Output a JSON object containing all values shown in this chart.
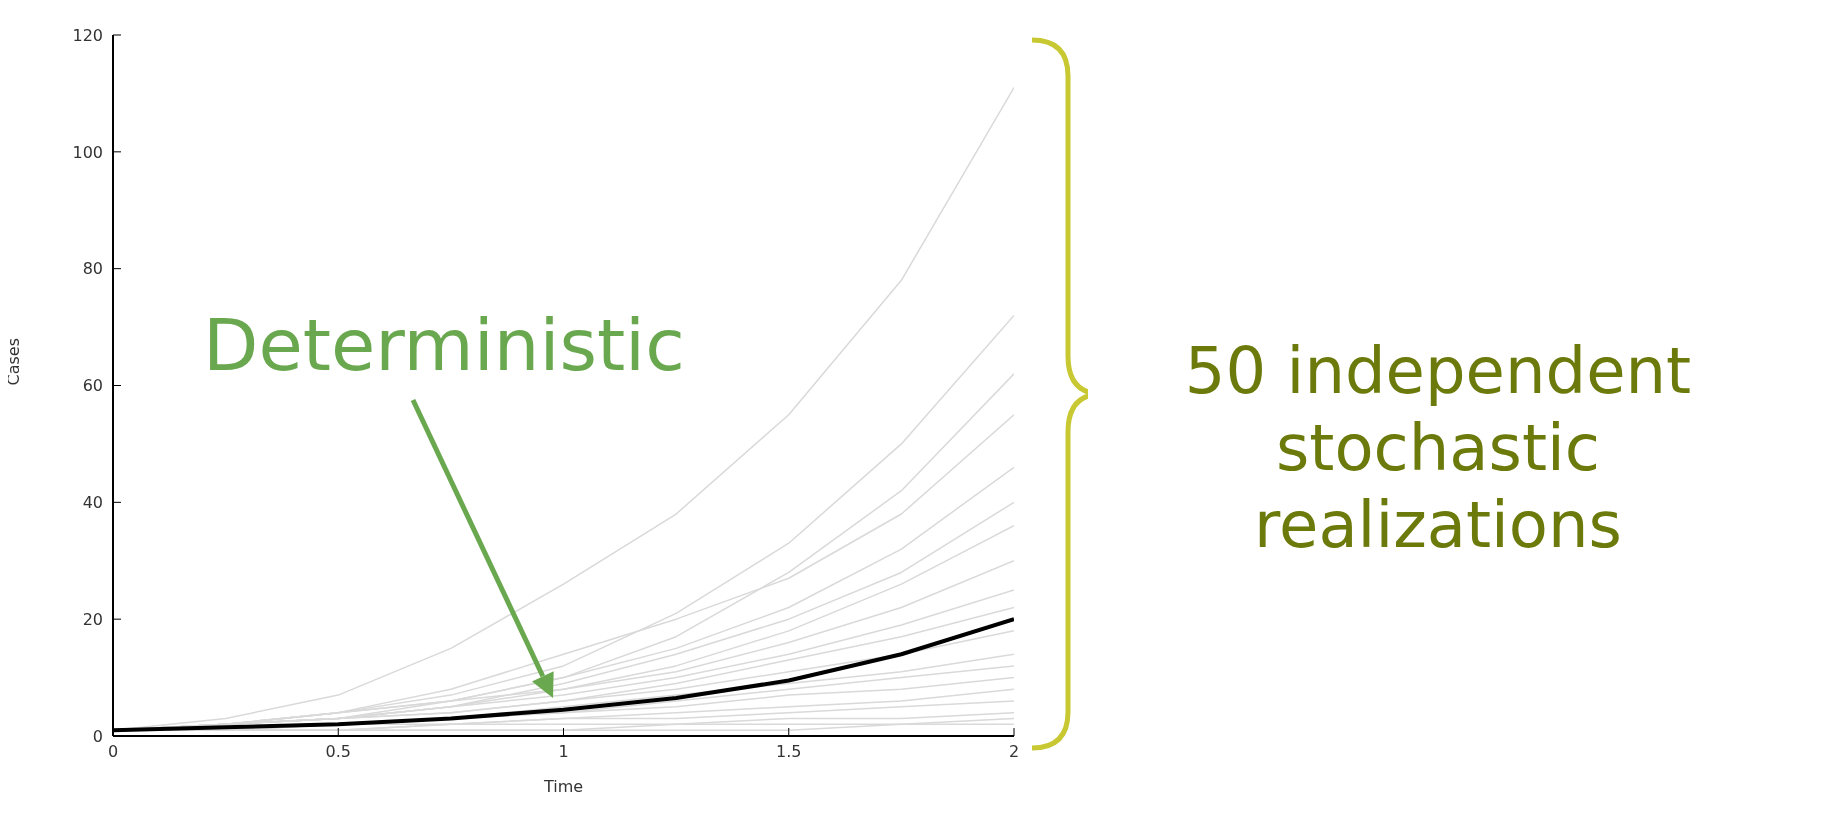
{
  "chart_data": {
    "type": "line",
    "xlabel": "Time",
    "ylabel": "Cases",
    "x": [
      0,
      0.25,
      0.5,
      0.75,
      1,
      1.25,
      1.5,
      1.75,
      2
    ],
    "xlim": [
      0,
      2
    ],
    "xticks": [
      0,
      0.5,
      1,
      1.5,
      2
    ],
    "ylim": [
      0,
      120
    ],
    "yticks": [
      0,
      20,
      40,
      60,
      80,
      100,
      120
    ],
    "marker": "none",
    "line_style": "solid",
    "series": [
      {
        "color": "#d9d9d9",
        "values": [
          1,
          3,
          7,
          15,
          26,
          38,
          55,
          78,
          111
        ]
      },
      {
        "color": "#d9d9d9",
        "values": [
          1,
          2,
          4,
          7,
          12,
          21,
          33,
          50,
          72
        ]
      },
      {
        "color": "#d9d9d9",
        "values": [
          1,
          2,
          4,
          6,
          10,
          17,
          28,
          42,
          62
        ]
      },
      {
        "color": "#d9d9d9",
        "values": [
          1,
          2,
          4,
          8,
          14,
          20,
          27,
          38,
          55
        ]
      },
      {
        "color": "#d9d9d9",
        "values": [
          1,
          2,
          3,
          6,
          10,
          15,
          22,
          32,
          46
        ]
      },
      {
        "color": "#d9d9d9",
        "values": [
          1,
          2,
          3,
          5,
          9,
          14,
          20,
          28,
          40
        ]
      },
      {
        "color": "#d9d9d9",
        "values": [
          1,
          2,
          4,
          6,
          8,
          12,
          18,
          26,
          36
        ]
      },
      {
        "color": "#d9d9d9",
        "values": [
          1,
          2,
          3,
          5,
          8,
          11,
          16,
          22,
          30
        ]
      },
      {
        "color": "#d9d9d9",
        "values": [
          1,
          2,
          3,
          5,
          7,
          10,
          14,
          19,
          25
        ]
      },
      {
        "color": "#d9d9d9",
        "values": [
          1,
          2,
          3,
          4,
          6,
          9,
          13,
          17,
          22
        ]
      },
      {
        "color": "#d9d9d9",
        "values": [
          1,
          2,
          3,
          4,
          6,
          8,
          11,
          14,
          18
        ]
      },
      {
        "color": "#d9d9d9",
        "values": [
          1,
          1,
          2,
          3,
          5,
          7,
          9,
          11,
          14
        ]
      },
      {
        "color": "#d9d9d9",
        "values": [
          1,
          1,
          2,
          3,
          4,
          6,
          8,
          10,
          12
        ]
      },
      {
        "color": "#d9d9d9",
        "values": [
          1,
          1,
          2,
          3,
          4,
          5,
          7,
          8,
          10
        ]
      },
      {
        "color": "#d9d9d9",
        "values": [
          1,
          1,
          2,
          2,
          3,
          4,
          5,
          6,
          8
        ]
      },
      {
        "color": "#d9d9d9",
        "values": [
          1,
          1,
          1,
          2,
          3,
          3,
          4,
          5,
          6
        ]
      },
      {
        "color": "#d9d9d9",
        "values": [
          1,
          1,
          1,
          2,
          2,
          2,
          3,
          3,
          4
        ]
      },
      {
        "color": "#d9d9d9",
        "values": [
          1,
          1,
          1,
          1,
          1,
          2,
          2,
          2,
          3
        ]
      },
      {
        "color": "#d9d9d9",
        "values": [
          1,
          1,
          1,
          1,
          1,
          1,
          1,
          2,
          2
        ]
      },
      {
        "color": "#000000",
        "values": [
          1,
          1.5,
          2,
          3,
          4.5,
          6.5,
          9.5,
          14,
          20
        ]
      }
    ],
    "annotations": [
      "Deterministic",
      "50 independent stochastic realizations"
    ]
  }
}
